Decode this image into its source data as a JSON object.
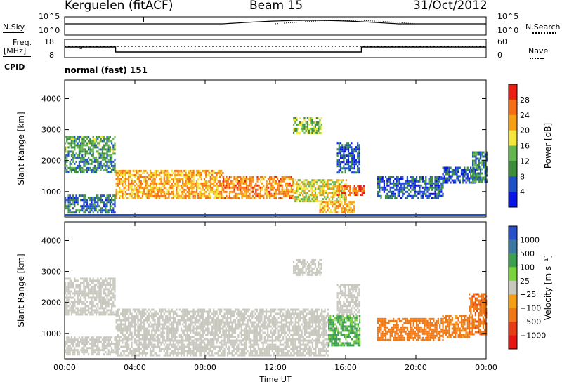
{
  "header": {
    "station": "Kerguelen (fitACF)",
    "beam": "Beam 15",
    "date": "31/Oct/2012"
  },
  "strip_labels": {
    "nsky": "N.Sky",
    "nsearch": "N.Search",
    "freq_line1": "Freq.",
    "freq_line2": "[MHz]",
    "nave": "Nave",
    "cpid": "CPID",
    "cpid_value": "normal (fast) 151",
    "nsky_ticks": [
      "10^5",
      "10^0"
    ],
    "nsearch_ticks": [
      "10^5",
      "10^0"
    ],
    "freq_ticks": [
      "18",
      "8"
    ],
    "nave_ticks": [
      "60",
      "0"
    ],
    "freq_marker": "s"
  },
  "colors": {
    "power_scale": [
      "#0a14e6",
      "#1e50c8",
      "#3c8c3c",
      "#64b450",
      "#f5e63c",
      "#f5a014",
      "#f56e14",
      "#eb1e14"
    ],
    "velocity_scale": [
      "#2850c8",
      "#3c78a0",
      "#3ca050",
      "#7ad23c",
      "#c8c8be",
      "#f5a014",
      "#f07814",
      "#e63c14",
      "#e61414"
    ]
  },
  "chart_data": [
    {
      "type": "heatmap",
      "title": "",
      "xlabel": "Time UT",
      "ylabel": "Slant Range [km]",
      "x_ticks": [
        "00:00",
        "04:00",
        "08:00",
        "12:00",
        "16:00",
        "20:00",
        "00:00"
      ],
      "xlim_hours": [
        0,
        24
      ],
      "y_ticks": [
        1000,
        2000,
        3000,
        4000
      ],
      "ylim": [
        180,
        4600
      ],
      "colorbar": {
        "label": "Power [dB]",
        "ticks": [
          "4",
          "8",
          "12",
          "16",
          "20",
          "24",
          "28"
        ],
        "range": [
          0,
          32
        ]
      },
      "regions": [
        {
          "t": [
            0.0,
            2.9
          ],
          "r": [
            2200,
            2800
          ],
          "level": 12
        },
        {
          "t": [
            0.0,
            2.9
          ],
          "r": [
            1600,
            2200
          ],
          "level": 10
        },
        {
          "t": [
            0.0,
            2.9
          ],
          "r": [
            300,
            900
          ],
          "level": 8
        },
        {
          "t": [
            2.9,
            9.0
          ],
          "r": [
            800,
            1700
          ],
          "level": 22
        },
        {
          "t": [
            9.0,
            13.0
          ],
          "r": [
            800,
            1500
          ],
          "level": 24
        },
        {
          "t": [
            13.0,
            16.0
          ],
          "r": [
            700,
            1400
          ],
          "level": 18
        },
        {
          "t": [
            13.0,
            14.6
          ],
          "r": [
            2900,
            3400
          ],
          "level": 14
        },
        {
          "t": [
            14.5,
            16.5
          ],
          "r": [
            300,
            700
          ],
          "level": 22
        },
        {
          "t": [
            15.5,
            17.0
          ],
          "r": [
            900,
            1200
          ],
          "level": 26
        },
        {
          "t": [
            15.5,
            16.8
          ],
          "r": [
            1600,
            2600
          ],
          "level": 6
        },
        {
          "t": [
            17.8,
            21.5
          ],
          "r": [
            800,
            1500
          ],
          "level": 6
        },
        {
          "t": [
            21.5,
            23.5
          ],
          "r": [
            1300,
            1800
          ],
          "level": 6
        },
        {
          "t": [
            23.2,
            24.0
          ],
          "r": [
            1300,
            2300
          ],
          "level": 10
        }
      ]
    },
    {
      "type": "heatmap",
      "title": "",
      "xlabel": "Time UT",
      "ylabel": "Slant Range [km]",
      "x_ticks": [
        "00:00",
        "04:00",
        "08:00",
        "12:00",
        "16:00",
        "20:00",
        "00:00"
      ],
      "xlim_hours": [
        0,
        24
      ],
      "y_ticks": [
        1000,
        2000,
        3000,
        4000
      ],
      "ylim": [
        180,
        4600
      ],
      "colorbar": {
        "label": "Velocity [m s⁻¹]",
        "ticks": [
          "1000",
          "500",
          "100",
          "25",
          "−25",
          "−100",
          "−500",
          "−1000"
        ],
        "range": [
          -1200,
          1200
        ]
      },
      "regions": [
        {
          "t": [
            0.0,
            2.9
          ],
          "r": [
            1600,
            2800
          ],
          "level": 0
        },
        {
          "t": [
            0.0,
            2.9
          ],
          "r": [
            300,
            900
          ],
          "level": 0
        },
        {
          "t": [
            2.9,
            15.0
          ],
          "r": [
            800,
            1800
          ],
          "level": 0
        },
        {
          "t": [
            2.9,
            15.0
          ],
          "r": [
            300,
            800
          ],
          "level": 0
        },
        {
          "t": [
            13.0,
            14.6
          ],
          "r": [
            2900,
            3400
          ],
          "level": 0
        },
        {
          "t": [
            15.0,
            16.8
          ],
          "r": [
            600,
            1600
          ],
          "level": 150
        },
        {
          "t": [
            15.5,
            16.8
          ],
          "r": [
            1600,
            2600
          ],
          "level": 0
        },
        {
          "t": [
            17.8,
            21.5
          ],
          "r": [
            800,
            1500
          ],
          "level": -300
        },
        {
          "t": [
            21.5,
            23.0
          ],
          "r": [
            900,
            1600
          ],
          "level": -200
        },
        {
          "t": [
            23.0,
            24.0
          ],
          "r": [
            1000,
            2300
          ],
          "level": -400
        }
      ]
    }
  ]
}
